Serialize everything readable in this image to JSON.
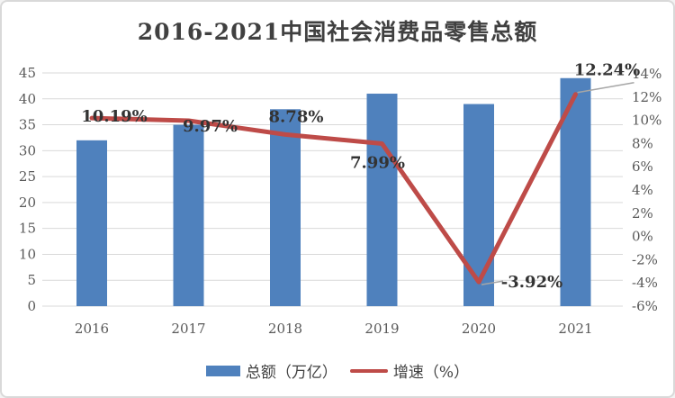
{
  "chart_data": {
    "type": "combo",
    "title": "2016-2021中国社会消费品零售总额",
    "categories": [
      "2016",
      "2017",
      "2018",
      "2019",
      "2020",
      "2021"
    ],
    "series": [
      {
        "name": "总额（万亿）",
        "type": "bar",
        "axis": "left",
        "color": "#4F81BD",
        "values": [
          32,
          35,
          38,
          41,
          39,
          44
        ]
      },
      {
        "name": "增速（%）",
        "type": "line",
        "axis": "right",
        "color": "#BE4B48",
        "values": [
          10.19,
          9.97,
          8.78,
          7.99,
          -3.92,
          12.24
        ],
        "labels": [
          "10.19%",
          "9.97%",
          "8.78%",
          "7.99%",
          "-3.92%",
          "12.24%"
        ]
      }
    ],
    "axes": {
      "left": {
        "min": 0,
        "max": 45,
        "step": 5,
        "ticks": [
          "0",
          "5",
          "10",
          "15",
          "20",
          "25",
          "30",
          "35",
          "40",
          "45"
        ]
      },
      "right": {
        "min": -6,
        "max": 14,
        "step": 2,
        "ticks": [
          "-6%",
          "-4%",
          "-2%",
          "0%",
          "2%",
          "4%",
          "6%",
          "8%",
          "10%",
          "12%",
          "14%"
        ]
      }
    },
    "grid": "horizontal",
    "legend": {
      "position": "bottom",
      "items": [
        {
          "label": "总额（万亿）",
          "type": "bar",
          "color": "#4F81BD"
        },
        {
          "label": "增速（%）",
          "type": "line",
          "color": "#BE4B48"
        }
      ]
    },
    "colors": {
      "grid": "#D9D9D9",
      "axis_text": "#595959",
      "data_label": "#333333",
      "title": "#404040",
      "leader": "#A6A6A6",
      "border": "#D9D9D9",
      "background": "#FFFFFF"
    }
  }
}
